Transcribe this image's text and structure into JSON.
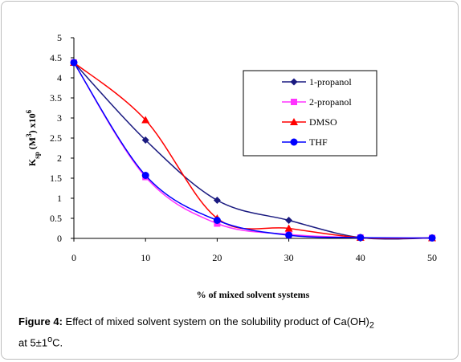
{
  "chart_data": {
    "type": "line",
    "x": [
      0,
      10,
      20,
      30,
      40,
      50
    ],
    "xlabel": "% of mixed solvent systems",
    "ylabel": {
      "base": "K",
      "sub": "sp",
      "mid": " (M",
      "sup1": "3",
      "mid2": ") x10",
      "sup2": "6"
    },
    "ylim": [
      0,
      5
    ],
    "xlim": [
      0,
      50
    ],
    "yticks": [
      "0",
      "0.5",
      "1",
      "1.5",
      "2",
      "2.5",
      "3",
      "3.5",
      "4",
      "4.5",
      "5"
    ],
    "xticks": [
      "0",
      "10",
      "20",
      "30",
      "40",
      "50"
    ],
    "grid": false,
    "legend_position": "top-right",
    "series": [
      {
        "name": "1-propanol",
        "values": [
          4.38,
          2.45,
          0.95,
          0.45,
          0.02,
          0.01
        ],
        "color": "#1a1a80",
        "marker": "diamond"
      },
      {
        "name": "2-propanol",
        "values": [
          4.38,
          1.53,
          0.37,
          0.1,
          0.02,
          0.01
        ],
        "color": "#ff33ff",
        "marker": "square"
      },
      {
        "name": "DMSO",
        "values": [
          4.38,
          2.95,
          0.5,
          0.25,
          0.02,
          0.01
        ],
        "color": "#ff0000",
        "marker": "triangle"
      },
      {
        "name": "THF",
        "values": [
          4.38,
          1.57,
          0.45,
          0.08,
          0.02,
          0.01
        ],
        "color": "#0000ff",
        "marker": "circle"
      }
    ]
  },
  "caption": {
    "label": "Figure 4:",
    "text1": " Effect of mixed solvent system on the solubility product of Ca(OH)",
    "sub": "2",
    "text2": "at 5±1",
    "sup": "o",
    "text3": "C."
  }
}
